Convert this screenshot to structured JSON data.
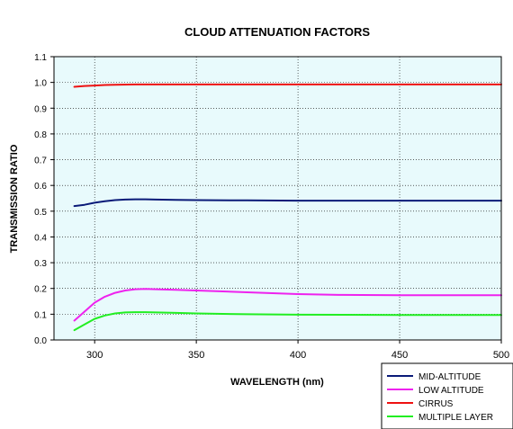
{
  "chart_data": {
    "type": "line",
    "title": "CLOUD ATTENUATION FACTORS",
    "xlabel": "WAVELENGTH (nm)",
    "ylabel": "TRANSMISSION RATIO",
    "xlim": [
      280,
      500
    ],
    "ylim": [
      0,
      1.1
    ],
    "xticks": [
      300,
      350,
      400,
      450,
      500
    ],
    "xtick_labels": [
      "300",
      "350",
      "400",
      "450",
      "500"
    ],
    "yticks": [
      0,
      0.1,
      0.2,
      0.3,
      0.4,
      0.5,
      0.6,
      0.7,
      0.8,
      0.9,
      1.0,
      1.1
    ],
    "ytick_labels": [
      "0.0",
      "0.1",
      "0.2",
      "0.3",
      "0.4",
      "0.5",
      "0.6",
      "0.7",
      "0.8",
      "0.9",
      "1.0",
      "1.1"
    ],
    "grid": true,
    "plot_background": "#e8fafc",
    "legend_position": "bottom-right, outside plot",
    "series": [
      {
        "name": "MID-ALTITUDE",
        "color": "#0a1a78",
        "x": [
          290,
          295,
          300,
          305,
          310,
          315,
          320,
          325,
          330,
          340,
          350,
          375,
          400,
          450,
          500
        ],
        "y": [
          0.52,
          0.525,
          0.533,
          0.539,
          0.543,
          0.545,
          0.546,
          0.546,
          0.545,
          0.544,
          0.543,
          0.542,
          0.541,
          0.541,
          0.541
        ]
      },
      {
        "name": "LOW ALTITUDE",
        "color": "#ee22ee",
        "x": [
          290,
          295,
          300,
          305,
          310,
          315,
          320,
          325,
          330,
          340,
          350,
          375,
          400,
          420,
          450,
          500
        ],
        "y": [
          0.075,
          0.11,
          0.145,
          0.168,
          0.183,
          0.192,
          0.197,
          0.198,
          0.197,
          0.195,
          0.192,
          0.185,
          0.178,
          0.175,
          0.174,
          0.174
        ]
      },
      {
        "name": "CIRRUS",
        "color": "#ee1111",
        "x": [
          290,
          295,
          300,
          305,
          310,
          320,
          350,
          400,
          450,
          500
        ],
        "y": [
          0.983,
          0.986,
          0.988,
          0.99,
          0.991,
          0.992,
          0.992,
          0.992,
          0.992,
          0.992
        ]
      },
      {
        "name": "MULTIPLE LAYER",
        "color": "#22ee22",
        "x": [
          290,
          295,
          300,
          305,
          310,
          315,
          320,
          325,
          330,
          340,
          350,
          375,
          400,
          450,
          500
        ],
        "y": [
          0.038,
          0.06,
          0.082,
          0.095,
          0.103,
          0.107,
          0.108,
          0.108,
          0.107,
          0.105,
          0.103,
          0.1,
          0.098,
          0.097,
          0.097
        ]
      }
    ]
  }
}
